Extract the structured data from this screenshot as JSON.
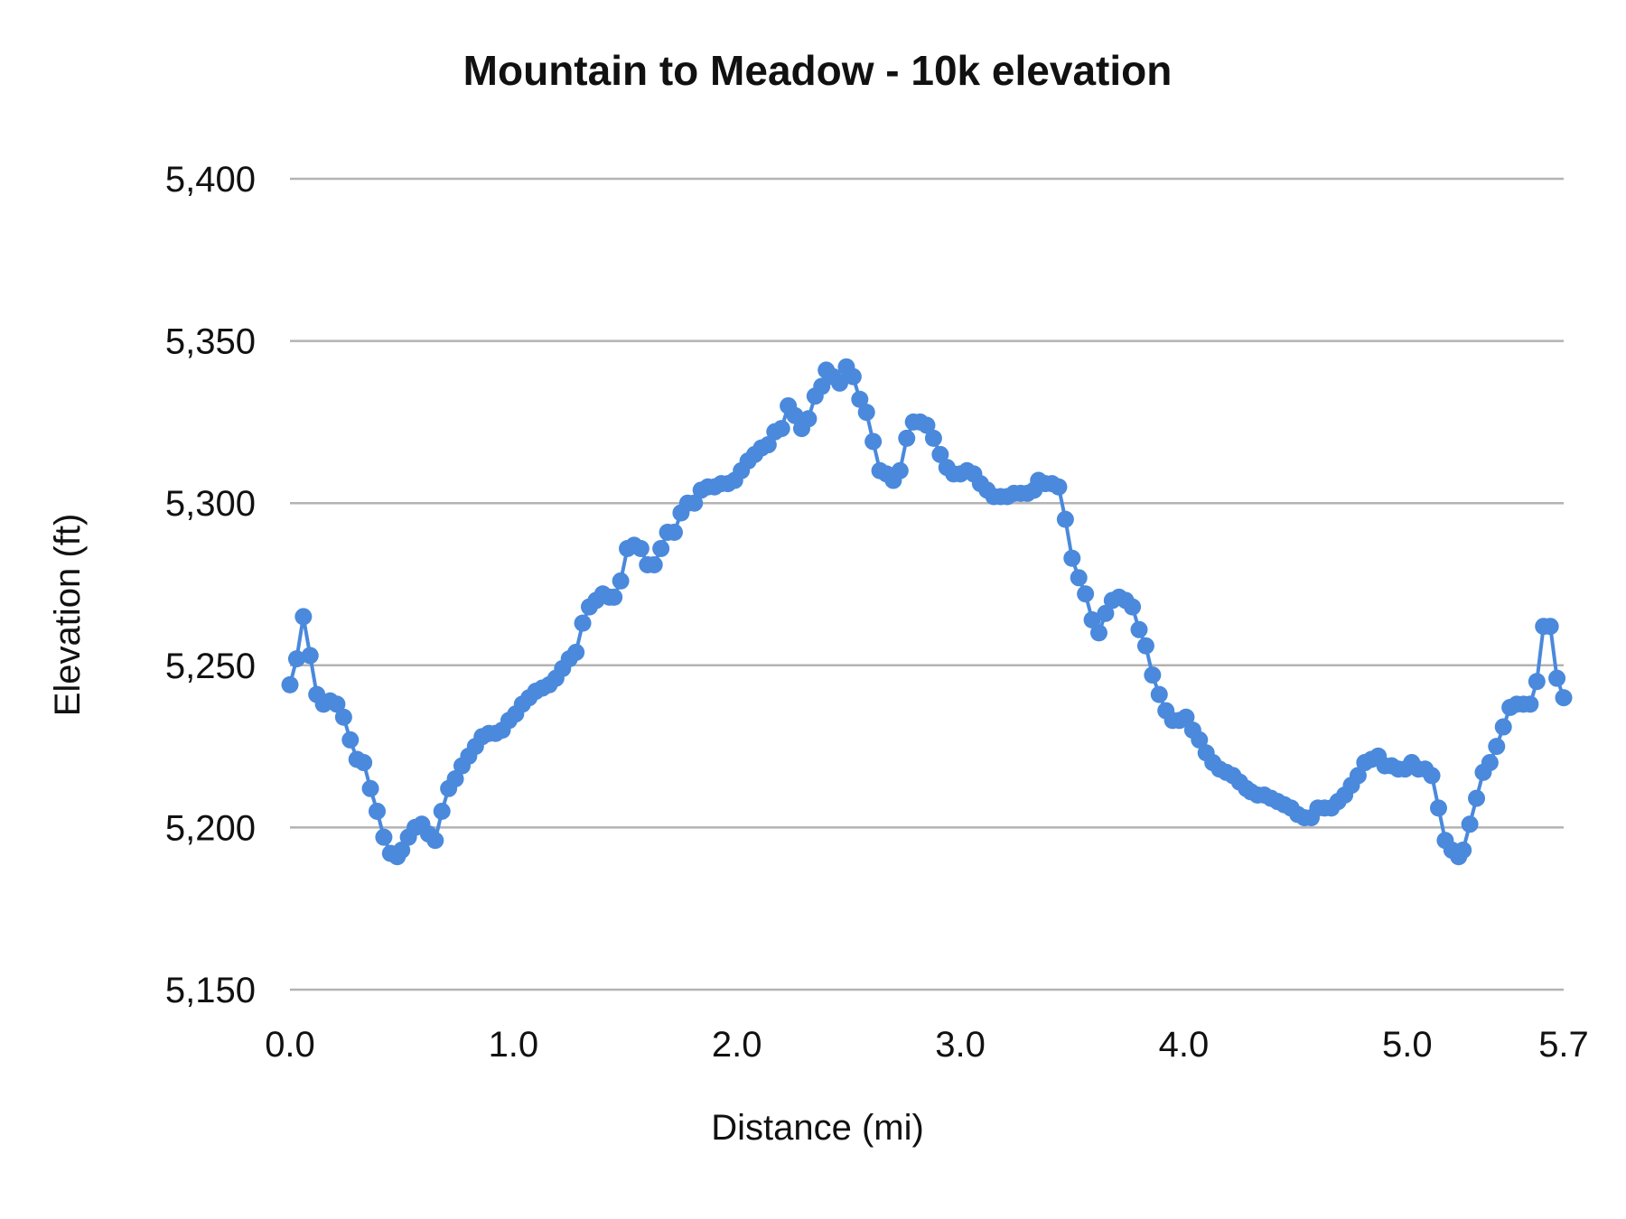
{
  "chart_data": {
    "type": "line",
    "title": "Mountain to Meadow - 10k elevation",
    "xlabel": "Distance (mi)",
    "ylabel": "Elevation (ft)",
    "xlim": [
      0,
      5.7
    ],
    "ylim": [
      5150,
      5400
    ],
    "x_tick_labels": [
      "0.0",
      "1.0",
      "2.0",
      "3.0",
      "4.0",
      "5.0",
      "5.7"
    ],
    "x_ticks": [
      0,
      1,
      2,
      3,
      4,
      5,
      5.7
    ],
    "y_tick_labels": [
      "5,150",
      "5,200",
      "5,250",
      "5,300",
      "5,350",
      "5,400"
    ],
    "y_ticks": [
      5150,
      5200,
      5250,
      5300,
      5350,
      5400
    ],
    "grid": "horizontal",
    "markers": true,
    "series_color": "#4a89dc",
    "grid_color": "#b3b3b3",
    "series": [
      {
        "x": [
          0.0,
          0.03,
          0.06,
          0.09,
          0.12,
          0.15,
          0.18,
          0.21,
          0.24,
          0.27,
          0.3,
          0.33,
          0.36,
          0.39,
          0.42,
          0.45,
          0.48,
          0.5,
          0.53,
          0.56,
          0.59,
          0.62,
          0.65,
          0.68,
          0.71,
          0.74,
          0.77,
          0.8,
          0.83,
          0.86,
          0.89,
          0.92,
          0.95,
          0.98,
          1.01,
          1.04,
          1.07,
          1.1,
          1.13,
          1.16,
          1.19,
          1.22,
          1.25,
          1.28,
          1.31,
          1.34,
          1.37,
          1.4,
          1.43,
          1.45,
          1.48,
          1.51,
          1.54,
          1.57,
          1.6,
          1.63,
          1.66,
          1.69,
          1.72,
          1.75,
          1.78,
          1.81,
          1.84,
          1.87,
          1.9,
          1.93,
          1.96,
          1.99,
          2.02,
          2.05,
          2.08,
          2.11,
          2.14,
          2.17,
          2.2,
          2.23,
          2.26,
          2.29,
          2.32,
          2.35,
          2.38,
          2.4,
          2.43,
          2.46,
          2.49,
          2.52,
          2.55,
          2.58,
          2.61,
          2.64,
          2.67,
          2.7,
          2.73,
          2.76,
          2.79,
          2.82,
          2.85,
          2.88,
          2.91,
          2.94,
          2.97,
          3.0,
          3.03,
          3.06,
          3.09,
          3.12,
          3.15,
          3.18,
          3.21,
          3.24,
          3.27,
          3.3,
          3.33,
          3.35,
          3.38,
          3.41,
          3.44,
          3.47,
          3.5,
          3.53,
          3.56,
          3.59,
          3.62,
          3.65,
          3.68,
          3.71,
          3.74,
          3.77,
          3.8,
          3.83,
          3.86,
          3.89,
          3.92,
          3.95,
          3.98,
          4.01,
          4.04,
          4.07,
          4.1,
          4.13,
          4.16,
          4.19,
          4.22,
          4.25,
          4.28,
          4.3,
          4.33,
          4.36,
          4.39,
          4.42,
          4.45,
          4.48,
          4.51,
          4.54,
          4.57,
          4.6,
          4.63,
          4.66,
          4.69,
          4.72,
          4.75,
          4.78,
          4.81,
          4.84,
          4.87,
          4.9,
          4.93,
          4.96,
          4.99,
          5.02,
          5.05,
          5.08,
          5.11,
          5.14,
          5.17,
          5.2,
          5.23,
          5.25,
          5.28,
          5.31,
          5.34,
          5.37,
          5.4,
          5.43,
          5.46,
          5.49,
          5.52,
          5.55,
          5.58,
          5.61,
          5.64,
          5.67,
          5.7
        ],
        "y": [
          5244,
          5252,
          5265,
          5253,
          5241,
          5238,
          5239,
          5238,
          5234,
          5227,
          5221,
          5220,
          5212,
          5205,
          5197,
          5192,
          5191,
          5193,
          5197,
          5200,
          5201,
          5198,
          5196,
          5205,
          5212,
          5215,
          5219,
          5222,
          5225,
          5228,
          5229,
          5229,
          5230,
          5233,
          5235,
          5238,
          5240,
          5242,
          5243,
          5244,
          5246,
          5249,
          5252,
          5254,
          5263,
          5268,
          5270,
          5272,
          5271,
          5271,
          5276,
          5286,
          5287,
          5286,
          5281,
          5281,
          5286,
          5291,
          5291,
          5297,
          5300,
          5300,
          5304,
          5305,
          5305,
          5306,
          5306,
          5307,
          5310,
          5313,
          5315,
          5317,
          5318,
          5322,
          5323,
          5330,
          5327,
          5323,
          5326,
          5333,
          5336,
          5341,
          5339,
          5337,
          5342,
          5339,
          5332,
          5328,
          5319,
          5310,
          5309,
          5307,
          5310,
          5320,
          5325,
          5325,
          5324,
          5320,
          5315,
          5311,
          5309,
          5309,
          5310,
          5309,
          5306,
          5304,
          5302,
          5302,
          5302,
          5303,
          5303,
          5303,
          5304,
          5307,
          5306,
          5306,
          5305,
          5295,
          5283,
          5277,
          5272,
          5264,
          5260,
          5266,
          5270,
          5271,
          5270,
          5268,
          5261,
          5256,
          5247,
          5241,
          5236,
          5233,
          5233,
          5234,
          5230,
          5227,
          5223,
          5220,
          5218,
          5217,
          5216,
          5214,
          5212,
          5211,
          5210,
          5210,
          5209,
          5208,
          5207,
          5206,
          5204,
          5203,
          5203,
          5206,
          5206,
          5206,
          5208,
          5210,
          5213,
          5216,
          5220,
          5221,
          5222,
          5219,
          5219,
          5218,
          5218,
          5220,
          5218,
          5218,
          5216,
          5206,
          5196,
          5193,
          5191,
          5193,
          5201,
          5209,
          5217,
          5220,
          5225,
          5231,
          5237,
          5238,
          5238,
          5238,
          5245,
          5262,
          5262,
          5246,
          5240
        ]
      }
    ]
  }
}
